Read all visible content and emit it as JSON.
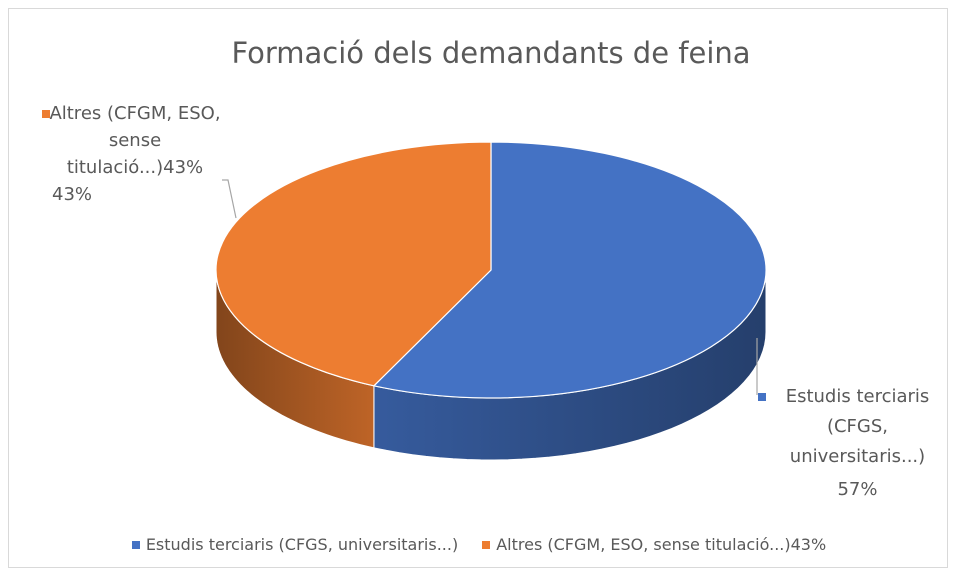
{
  "chart_data": {
    "type": "pie3d",
    "title": "Formació dels demandants de feina",
    "categories": [
      "Estudis terciaris (CFGS, universitaris...)",
      "Altres (CFGM, ESO, sense titulació...)43%"
    ],
    "values": [
      57,
      43
    ],
    "value_labels": [
      "57%",
      "43%"
    ],
    "colors": [
      "#4472c4",
      "#ed7d31"
    ],
    "legend": "bottom"
  }
}
